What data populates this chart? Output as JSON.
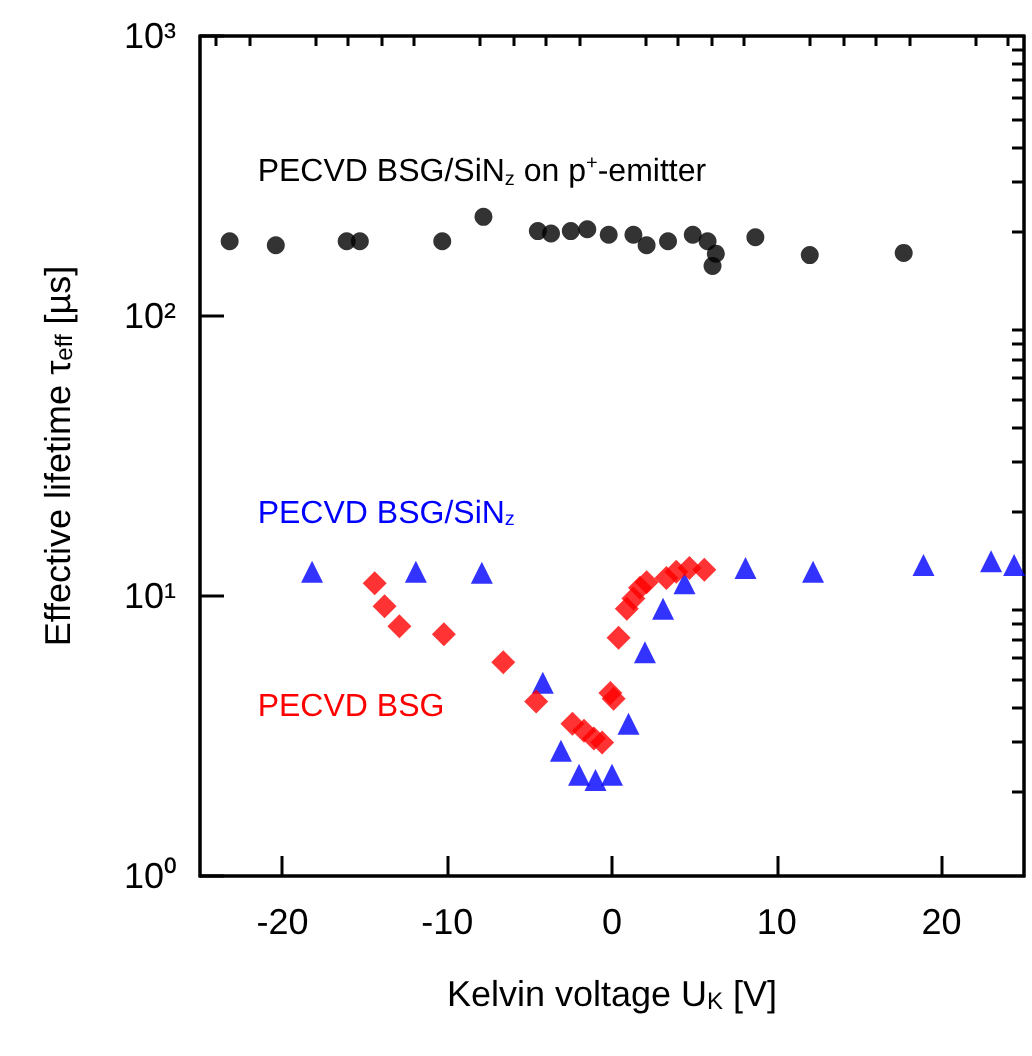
{
  "chart_data": {
    "type": "scatter",
    "xlabel": "Kelvin voltage U$_{K}$ [V]",
    "ylabel": "Effective lifetime τ$_{eff}$ [µs]",
    "log": "y",
    "grid": false,
    "legend": false,
    "xlim": [
      -25,
      25
    ],
    "ylim": [
      1,
      1000
    ],
    "xticks": [
      {
        "value": -24,
        "label": null
      },
      {
        "value": -22,
        "label": null
      },
      -20,
      {
        "value": -18,
        "label": null
      },
      {
        "value": -16,
        "label": null
      },
      {
        "value": -14,
        "label": null
      },
      {
        "value": -12,
        "label": null
      },
      -10,
      {
        "value": -8,
        "label": null
      },
      {
        "value": -6,
        "label": null
      },
      {
        "value": -4,
        "label": null
      },
      {
        "value": -2,
        "label": null
      },
      0,
      {
        "value": 2,
        "label": null
      },
      {
        "value": 4,
        "label": null
      },
      {
        "value": 6,
        "label": null
      },
      {
        "value": 8,
        "label": null
      },
      10,
      {
        "value": 12,
        "label": null
      },
      {
        "value": 14,
        "label": null
      },
      {
        "value": 16,
        "label": null
      },
      {
        "value": 18,
        "label": null
      },
      20,
      {
        "value": 22,
        "label": null
      },
      {
        "value": 24,
        "label": null
      }
    ],
    "yticks": [
      {
        "value": 1,
        "label": "10⁰"
      },
      {
        "value": 2,
        "label": null
      },
      {
        "value": 3,
        "label": null
      },
      {
        "value": 4,
        "label": null
      },
      {
        "value": 5,
        "label": null
      },
      {
        "value": 6,
        "label": null
      },
      {
        "value": 7,
        "label": null
      },
      {
        "value": 8,
        "label": null
      },
      {
        "value": 9,
        "label": null
      },
      {
        "value": 10,
        "label": "10¹"
      },
      {
        "value": 20,
        "label": null
      },
      {
        "value": 30,
        "label": null
      },
      {
        "value": 40,
        "label": null
      },
      {
        "value": 50,
        "label": null
      },
      {
        "value": 60,
        "label": null
      },
      {
        "value": 70,
        "label": null
      },
      {
        "value": 80,
        "label": null
      },
      {
        "value": 90,
        "label": null
      },
      {
        "value": 100,
        "label": "10²"
      },
      {
        "value": 200,
        "label": null
      },
      {
        "value": 300,
        "label": null
      },
      {
        "value": 400,
        "label": null
      },
      {
        "value": 500,
        "label": null
      },
      {
        "value": 600,
        "label": null
      },
      {
        "value": 700,
        "label": null
      },
      {
        "value": 800,
        "label": null
      },
      {
        "value": 900,
        "label": null
      },
      {
        "value": 1000,
        "label": "10³"
      }
    ],
    "series": [
      {
        "name": "PECVD BSG/SiN$_{z}$ on p$^{+}$-emitter",
        "color": "#000000",
        "marker": "circle",
        "x": [
          -23.2,
          -20.4,
          -16.1,
          -15.3,
          -10.3,
          -7.8,
          -4.5,
          -3.7,
          -2.5,
          -1.5,
          -0.2,
          1.3,
          2.1,
          3.4,
          4.9,
          5.8,
          6.1,
          6.3,
          8.7,
          12.0,
          17.7
        ],
        "values": [
          185,
          179,
          185,
          185,
          185,
          226,
          201,
          197,
          201,
          204,
          195,
          195,
          179,
          185,
          195,
          185,
          151,
          167,
          191,
          165,
          168
        ]
      },
      {
        "name": "PECVD BSG/SiN$_{z}$",
        "color": "#0000ff",
        "marker": "triangle",
        "x": [
          -18.2,
          -11.9,
          -7.9,
          -4.2,
          -3.1,
          -2.0,
          -1.0,
          0.0,
          1.0,
          2.0,
          3.1,
          4.4,
          8.1,
          12.2,
          18.9,
          23.0,
          24.4
        ],
        "values": [
          12.2,
          12.2,
          12.1,
          4.9,
          2.8,
          2.3,
          2.2,
          2.3,
          3.5,
          6.3,
          9.0,
          11.1,
          12.6,
          12.2,
          12.9,
          13.3,
          12.9
        ]
      },
      {
        "name": "PECVD BSG",
        "color": "#ff0000",
        "marker": "diamond",
        "x": [
          -14.4,
          -13.8,
          -12.9,
          -10.2,
          -6.6,
          -4.6,
          -2.4,
          -1.7,
          -1.1,
          -0.6,
          -0.1,
          0.1,
          0.4,
          0.9,
          1.3,
          1.7,
          2.1,
          3.3,
          3.9,
          4.7,
          5.6
        ],
        "values": [
          11.1,
          9.2,
          7.8,
          7.3,
          5.8,
          4.2,
          3.5,
          3.3,
          3.1,
          3.0,
          4.5,
          4.3,
          7.1,
          9.0,
          9.8,
          10.7,
          11.2,
          11.6,
          12.2,
          12.6,
          12.4
        ]
      }
    ]
  }
}
